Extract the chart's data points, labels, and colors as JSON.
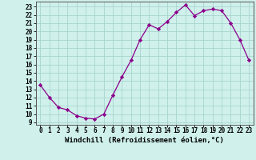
{
  "x": [
    0,
    1,
    2,
    3,
    4,
    5,
    6,
    7,
    8,
    9,
    10,
    11,
    12,
    13,
    14,
    15,
    16,
    17,
    18,
    19,
    20,
    21,
    22,
    23
  ],
  "y": [
    13.5,
    12.0,
    10.8,
    10.5,
    9.8,
    9.5,
    9.4,
    10.0,
    12.3,
    14.5,
    16.5,
    19.0,
    20.8,
    20.3,
    21.2,
    22.3,
    23.2,
    21.9,
    22.5,
    22.7,
    22.5,
    21.0,
    19.0,
    16.5
  ],
  "line_color": "#8B008B",
  "marker": "D",
  "marker_size": 2.2,
  "bg_color": "#cff0eb",
  "grid_color": "#aad4ce",
  "xlabel": "Windchill (Refroidissement éolien,°C)",
  "yticks": [
    9,
    10,
    11,
    12,
    13,
    14,
    15,
    16,
    17,
    18,
    19,
    20,
    21,
    22,
    23
  ],
  "xlim": [
    -0.5,
    23.5
  ],
  "ylim": [
    8.7,
    23.6
  ],
  "tick_fontsize": 5.5,
  "label_fontsize": 6.5
}
